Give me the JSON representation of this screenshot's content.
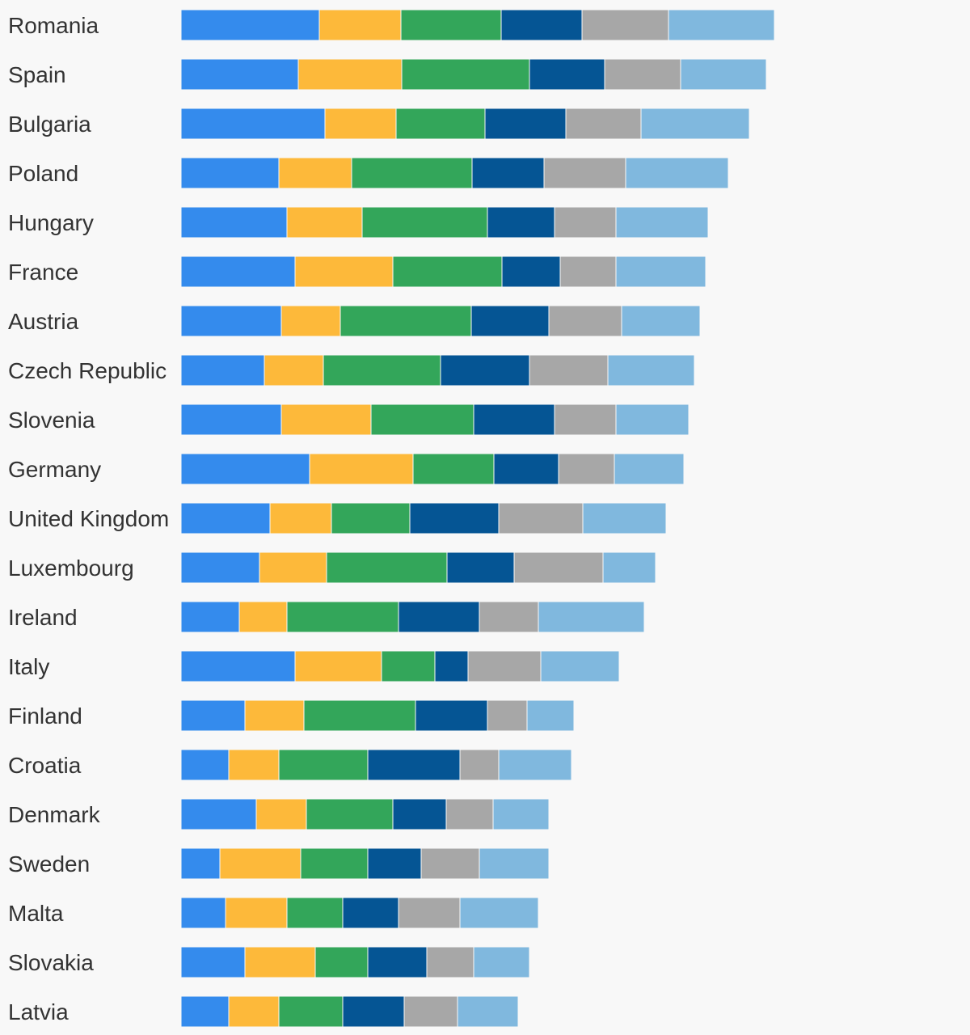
{
  "colors": [
    "#348bed",
    "#fdb93a",
    "#33a65a",
    "#055594",
    "#a7a7a7",
    "#80b8de"
  ],
  "chart_data": {
    "type": "bar",
    "orientation": "horizontal",
    "stacked": true,
    "title": "",
    "xlabel": "",
    "ylabel": "",
    "legend": "none",
    "grid": false,
    "categories": [
      "Romania",
      "Spain",
      "Bulgaria",
      "Poland",
      "Hungary",
      "France",
      "Austria",
      "Czech Republic",
      "Slovenia",
      "Germany",
      "United Kingdom",
      "Luxembourg",
      "Ireland",
      "Italy",
      "Finland",
      "Croatia",
      "Denmark",
      "Sweden",
      "Malta",
      "Slovakia",
      "Latvia"
    ],
    "series": [
      {
        "values": [
          171,
          145,
          178,
          121,
          131,
          141,
          124,
          103,
          124,
          159,
          110,
          97,
          72,
          141,
          79,
          59,
          93,
          48,
          55,
          79,
          59
        ]
      },
      {
        "values": [
          101,
          128,
          88,
          90,
          93,
          121,
          73,
          73,
          111,
          128,
          76,
          83,
          59,
          107,
          73,
          62,
          62,
          100,
          76,
          87,
          62
        ]
      },
      {
        "values": [
          124,
          158,
          110,
          149,
          155,
          135,
          162,
          145,
          127,
          100,
          97,
          149,
          138,
          66,
          138,
          110,
          107,
          83,
          69,
          65,
          79
        ]
      },
      {
        "values": [
          100,
          93,
          100,
          89,
          83,
          72,
          96,
          110,
          100,
          80,
          110,
          83,
          100,
          41,
          89,
          114,
          66,
          66,
          69,
          73,
          76
        ]
      },
      {
        "values": [
          107,
          94,
          93,
          101,
          76,
          69,
          90,
          97,
          76,
          69,
          104,
          110,
          73,
          90,
          49,
          48,
          58,
          72,
          76,
          58,
          66
        ]
      },
      {
        "values": [
          131,
          106,
          134,
          127,
          114,
          111,
          97,
          107,
          90,
          86,
          103,
          65,
          131,
          97,
          58,
          90,
          69,
          86,
          97,
          69,
          75
        ]
      }
    ]
  }
}
